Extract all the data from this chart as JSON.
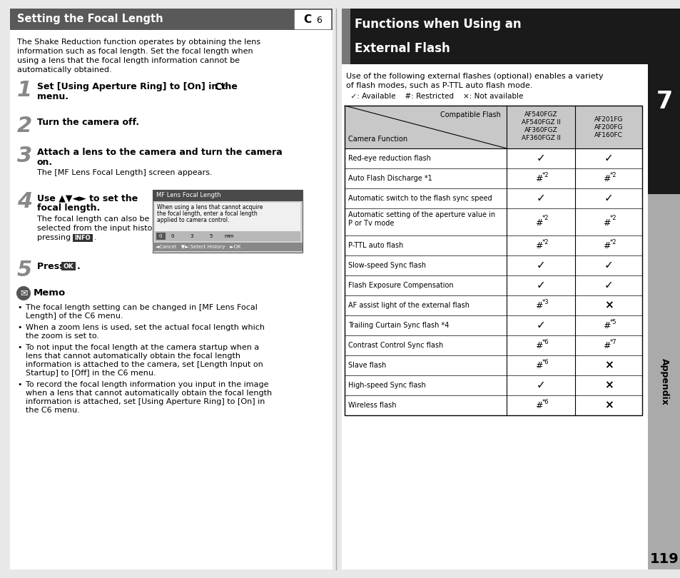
{
  "page_bg": "#e8e8e8",
  "left_panel_bg": "#ffffff",
  "right_panel_bg": "#ffffff",
  "left_header_bg": "#595959",
  "left_header_text": "Setting the Focal Length",
  "right_header_bg": "#1a1a1a",
  "right_header_accent_bg": "#6b6b6b",
  "intro_text_lines": [
    "The Shake Reduction function operates by obtaining the lens",
    "information such as focal length. Set the focal length when",
    "using a lens that the focal length information cannot be",
    "automatically obtained."
  ],
  "right_intro_lines": [
    "Use of the following external flashes (optional) enables a variety",
    "of flash modes, such as P-TTL auto flash mode."
  ],
  "legend": "  ✓: Available    #: Restricted    ×: Not available",
  "table_header_bg": "#c8c8c8",
  "table_rows": [
    [
      "Red-eye reduction flash",
      "✓",
      "✓"
    ],
    [
      "Auto Flash Discharge *1",
      "#*2",
      "#*2"
    ],
    [
      "Automatic switch to the flash sync speed",
      "✓",
      "✓"
    ],
    [
      "Automatic setting of the aperture value in\nP or Tv mode",
      "#*2",
      "#*2"
    ],
    [
      "P-TTL auto flash",
      "#*2",
      "#*2"
    ],
    [
      "Slow-speed Sync flash",
      "✓",
      "✓"
    ],
    [
      "Flash Exposure Compensation",
      "✓",
      "✓"
    ],
    [
      "AF assist light of the external flash",
      "#*3",
      "×"
    ],
    [
      "Trailing Curtain Sync flash *4",
      "✓",
      "#*5"
    ],
    [
      "Contrast Control Sync flash",
      "#*6",
      "#*7"
    ],
    [
      "Slave flash",
      "#*6",
      "×"
    ],
    [
      "High-speed Sync flash",
      "✓",
      "×"
    ],
    [
      "Wireless flash",
      "#*6",
      "×"
    ]
  ],
  "col1_header": "AF540FGZ\nAF540FGZ II\nAF360FGZ\nAF360FGZ II",
  "col2_header": "AF201FG\nAF200FG\nAF160FC",
  "col_label_left": "Camera Function",
  "col_label_right": "Compatible Flash",
  "sidebar_text": "7",
  "sidebar_label": "Appendix",
  "page_num": "119",
  "memo_bullets": [
    "The focal length setting can be changed in [MF Lens Focal\nLength] of the C6 menu.",
    "When a zoom lens is used, set the actual focal length which\nthe zoom is set to.",
    "To not input the focal length at the camera startup when a\nlens that cannot automatically obtain the focal length\ninformation is attached to the camera, set [Length Input on\nStartup] to [Off] in the C6 menu.",
    "To record the focal length information you input in the image\nwhen a lens that cannot automatically obtain the focal length\ninformation is attached, set [Using Aperture Ring] to [On] in\nthe C6 menu."
  ]
}
